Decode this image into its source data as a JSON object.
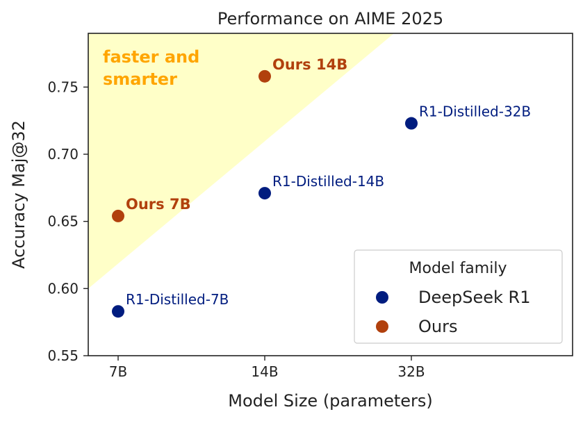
{
  "chart_data": {
    "type": "scatter",
    "title": "Performance on AIME 2025",
    "xlabel": "Model Size (parameters)",
    "ylabel": "Accuracy Maj@32",
    "x_ticks": [
      "7B",
      "14B",
      "32B"
    ],
    "y_ticks": [
      0.55,
      0.6,
      0.65,
      0.7,
      0.75
    ],
    "ylim": [
      0.55,
      0.79
    ],
    "grid": false,
    "region_label": [
      "faster and",
      "smarter"
    ],
    "legend": {
      "title": "Model family",
      "placement": "lower-right",
      "entries": [
        {
          "name": "DeepSeek R1",
          "color": "#001C7F"
        },
        {
          "name": "Ours",
          "color": "#B1400D"
        }
      ]
    },
    "series": [
      {
        "name": "DeepSeek R1",
        "color": "#001C7F",
        "points": [
          {
            "x": "7B",
            "y": 0.583,
            "label": "R1-Distilled-7B"
          },
          {
            "x": "14B",
            "y": 0.671,
            "label": "R1-Distilled-14B"
          },
          {
            "x": "32B",
            "y": 0.723,
            "label": "R1-Distilled-32B"
          }
        ]
      },
      {
        "name": "Ours",
        "color": "#B1400D",
        "points": [
          {
            "x": "7B",
            "y": 0.654,
            "label": "Ours 7B"
          },
          {
            "x": "14B",
            "y": 0.758,
            "label": "Ours 14B"
          }
        ]
      }
    ],
    "colors": {
      "region_fill": "#FFFFC8",
      "region_text": "#FFA500"
    }
  }
}
